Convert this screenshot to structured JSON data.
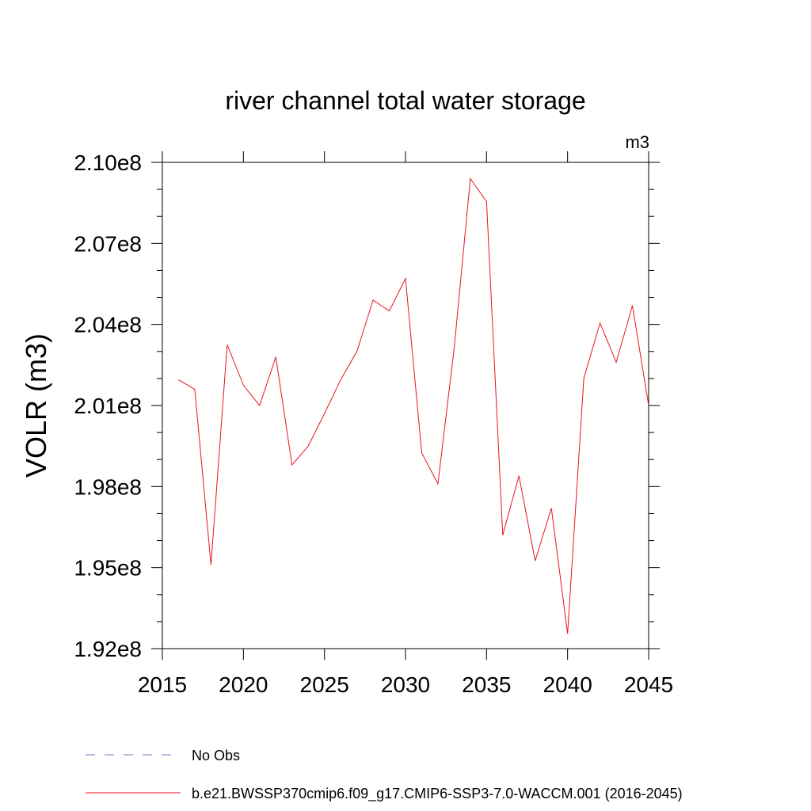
{
  "chart_data": {
    "type": "line",
    "title": "river channel total water storage",
    "units_label": "m3",
    "xlabel": "",
    "ylabel": "VOLR  (m3)",
    "xlim": [
      2015,
      2045
    ],
    "ylim": [
      192000000,
      210000000
    ],
    "x_ticks": [
      2015,
      2020,
      2025,
      2030,
      2035,
      2040,
      2045
    ],
    "x_tick_labels": [
      "2015",
      "2020",
      "2025",
      "2030",
      "2035",
      "2040",
      "2045"
    ],
    "y_ticks": [
      192000000,
      195000000,
      198000000,
      201000000,
      204000000,
      207000000,
      210000000
    ],
    "y_tick_labels": [
      "1.92e8",
      "1.95e8",
      "1.98e8",
      "2.01e8",
      "2.04e8",
      "2.07e8",
      "2.10e8"
    ],
    "y_minor_step": 1000000,
    "grid": false,
    "legend_position": "bottom",
    "legend": [
      {
        "label": "No Obs",
        "color": "#7b68c8",
        "style": "dashed"
      },
      {
        "label": "b.e21.BWSSP370cmip6.f09_g17.CMIP6-SSP3-7.0-WACCM.001 (2016-2045)",
        "color": "#e8141e",
        "style": "solid"
      }
    ],
    "series": [
      {
        "name": "b.e21.BWSSP370cmip6.f09_g17.CMIP6-SSP3-7.0-WACCM.001 (2016-2045)",
        "color": "#e8141e",
        "x": [
          2016,
          2017,
          2018,
          2019,
          2020,
          2021,
          2022,
          2023,
          2024,
          2025,
          2026,
          2027,
          2028,
          2029,
          2030,
          2031,
          2032,
          2033,
          2034,
          2035,
          2036,
          2037,
          2038,
          2039,
          2040,
          2041,
          2042,
          2043,
          2044,
          2045
        ],
        "y": [
          201950000,
          201600000,
          195100000,
          203250000,
          201750000,
          201000000,
          202800000,
          198800000,
          199500000,
          200700000,
          201950000,
          203000000,
          204900000,
          204500000,
          205700000,
          199250000,
          198100000,
          203100000,
          209400000,
          208550000,
          196200000,
          198400000,
          195250000,
          197200000,
          192550000,
          202000000,
          204050000,
          202600000,
          204700000,
          201000000
        ]
      }
    ]
  }
}
